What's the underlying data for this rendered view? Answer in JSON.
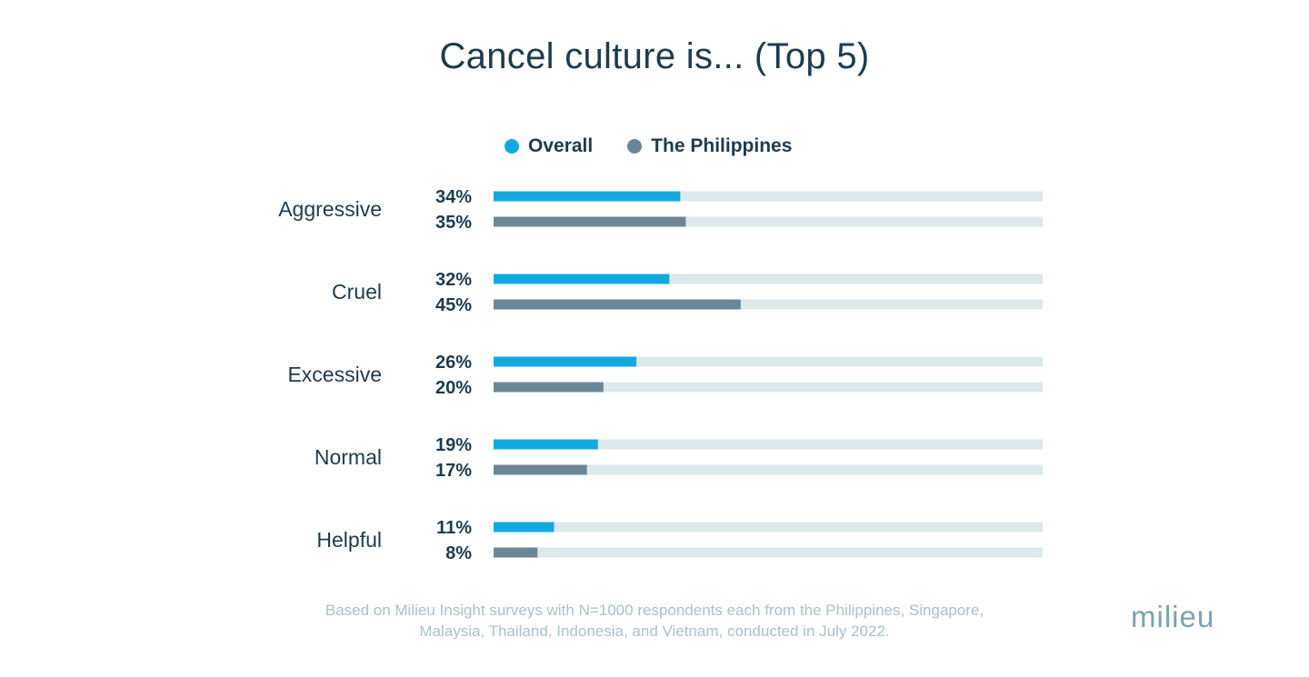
{
  "chart_data": {
    "type": "bar",
    "orientation": "horizontal",
    "title": "Cancel culture is... (Top 5)",
    "categories": [
      "Aggressive",
      "Cruel",
      "Excessive",
      "Normal",
      "Helpful"
    ],
    "series": [
      {
        "name": "Overall",
        "values": [
          34,
          32,
          26,
          19,
          11
        ],
        "labels": [
          "34%",
          "32%",
          "26%",
          "19%",
          "11%"
        ],
        "color": "#12a9e0"
      },
      {
        "name": "The Philippines",
        "values": [
          35,
          45,
          20,
          17,
          8
        ],
        "labels": [
          "35%",
          "45%",
          "20%",
          "17%",
          "8%"
        ],
        "color": "#6a8797"
      }
    ],
    "xlim": [
      0,
      100
    ],
    "track_color": "#dde8ea",
    "legend_position": "top",
    "grid": false
  },
  "footnote": {
    "line1": "Based on Milieu Insight surveys with N=1000 respondents each from the Philippines, Singapore,",
    "line2": "Malaysia, Thailand, Indonesia, and Vietnam, conducted in July 2022."
  },
  "logo": {
    "text": "milieu"
  }
}
